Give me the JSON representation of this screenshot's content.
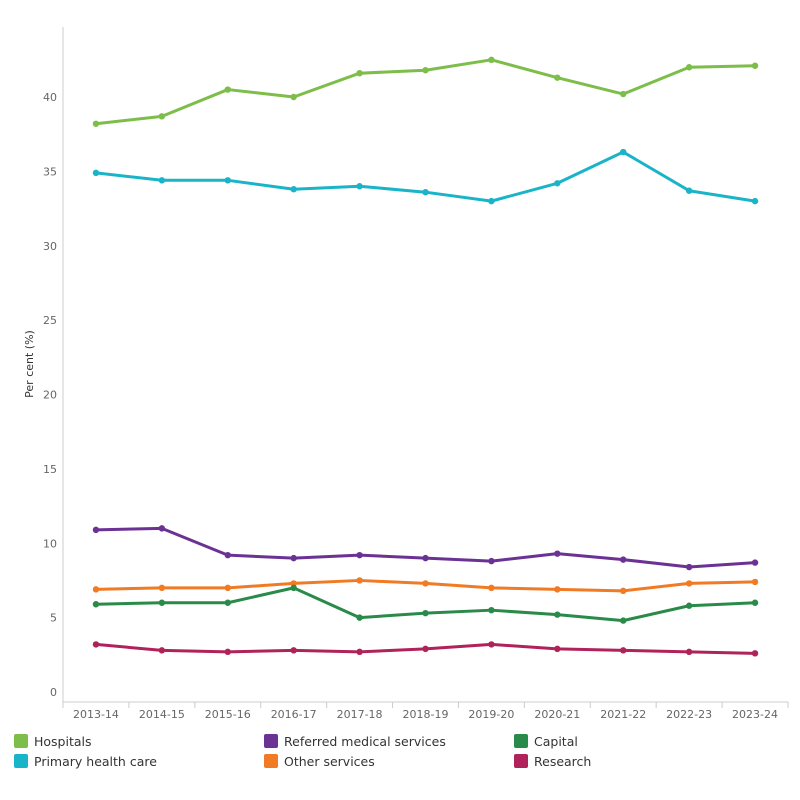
{
  "chart_data": {
    "type": "line",
    "ylabel": "Per cent (%)",
    "xlabel": "",
    "ylim": [
      0,
      44
    ],
    "yticks": [
      0,
      5,
      10,
      15,
      20,
      25,
      30,
      35,
      40
    ],
    "grid": false,
    "legend_position": "bottom",
    "categories": [
      "2013-14",
      "2014-15",
      "2015-16",
      "2016-17",
      "2017-18",
      "2018-19",
      "2019-20",
      "2020-21",
      "2021-22",
      "2022-23",
      "2023-24"
    ],
    "series": [
      {
        "name": "Hospitals",
        "color": "#7dbd4a",
        "values": [
          38.2,
          38.7,
          40.5,
          40.0,
          41.6,
          41.8,
          42.5,
          41.3,
          40.2,
          42.0,
          42.1
        ]
      },
      {
        "name": "Primary health care",
        "color": "#1ab4c8",
        "values": [
          34.9,
          34.4,
          34.4,
          33.8,
          34.0,
          33.6,
          33.0,
          34.2,
          36.3,
          33.7,
          33.0
        ]
      },
      {
        "name": "Referred medical services",
        "color": "#6b3294",
        "values": [
          10.9,
          11.0,
          9.2,
          9.0,
          9.2,
          9.0,
          8.8,
          9.3,
          8.9,
          8.4,
          8.7
        ]
      },
      {
        "name": "Other services",
        "color": "#f07b24",
        "values": [
          6.9,
          7.0,
          7.0,
          7.3,
          7.5,
          7.3,
          7.0,
          6.9,
          6.8,
          7.3,
          7.4
        ]
      },
      {
        "name": "Capital",
        "color": "#2a8a4a",
        "values": [
          5.9,
          6.0,
          6.0,
          7.0,
          5.0,
          5.3,
          5.5,
          5.2,
          4.8,
          5.8,
          6.0
        ]
      },
      {
        "name": "Research",
        "color": "#b0225a",
        "values": [
          3.2,
          2.8,
          2.7,
          2.8,
          2.7,
          2.9,
          3.2,
          2.9,
          2.8,
          2.7,
          2.6
        ]
      }
    ]
  },
  "legend": {
    "items": [
      {
        "label": "Hospitals",
        "color": "#7dbd4a"
      },
      {
        "label": "Referred medical services",
        "color": "#6b3294"
      },
      {
        "label": "Capital",
        "color": "#2a8a4a"
      },
      {
        "label": "Primary health care",
        "color": "#1ab4c8"
      },
      {
        "label": "Other services",
        "color": "#f07b24"
      },
      {
        "label": "Research",
        "color": "#b0225a"
      }
    ]
  }
}
